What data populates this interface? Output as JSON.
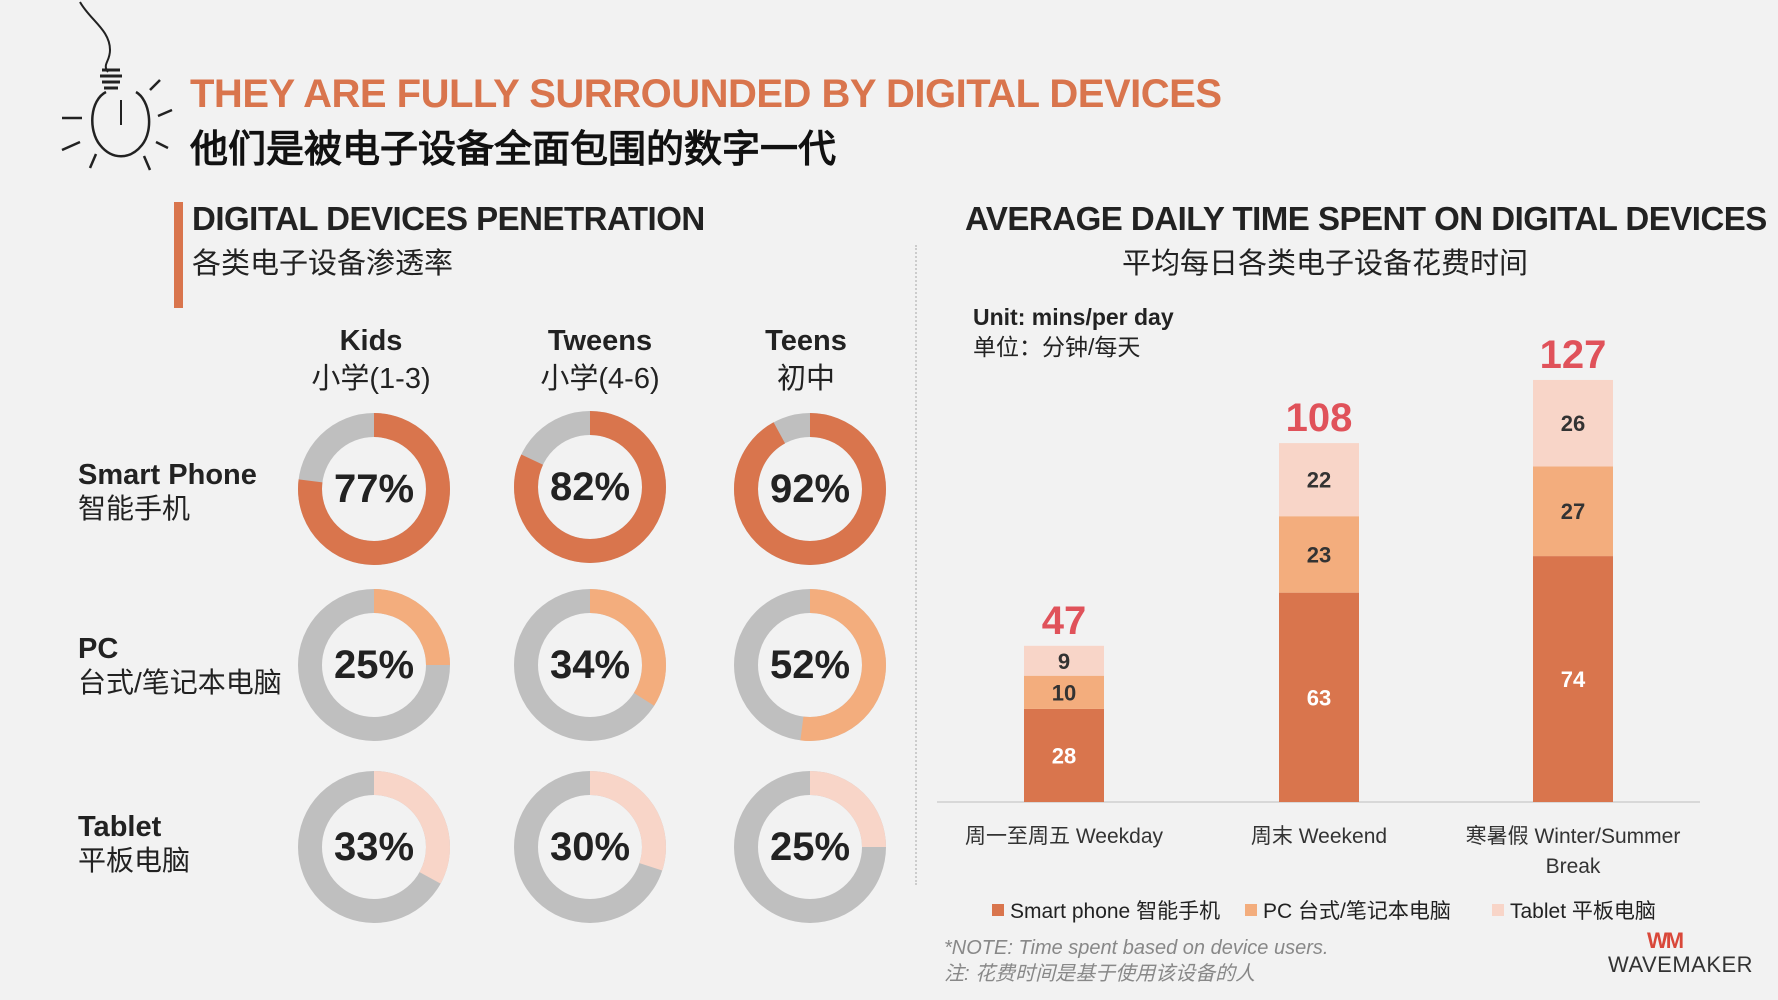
{
  "header": {
    "title_en": "THEY ARE FULLY SURROUNDED BY DIGITAL DEVICES",
    "title_cn": "他们是被电子设备全面包围的数字一代"
  },
  "penetration": {
    "title_en": "DIGITAL DEVICES PENETRATION",
    "title_cn": "各类电子设备渗透率",
    "groups": [
      {
        "en": "Kids",
        "cn": "小学(1-3)"
      },
      {
        "en": "Tweens",
        "cn": "小学(4-6)"
      },
      {
        "en": "Teens",
        "cn": "初中"
      }
    ],
    "devices": [
      {
        "en": "Smart Phone",
        "cn": "智能手机",
        "color": "#d9754d",
        "values": [
          77,
          82,
          92
        ],
        "labels": [
          "77%",
          "82%",
          "92%"
        ]
      },
      {
        "en": "PC",
        "cn": "台式/笔记本电脑",
        "color": "#f3ad7d",
        "values": [
          25,
          34,
          52
        ],
        "labels": [
          "25%",
          "34%",
          "52%"
        ]
      },
      {
        "en": "Tablet",
        "cn": "平板电脑",
        "color": "#f8d5c8",
        "values": [
          33,
          30,
          25
        ],
        "labels": [
          "33%",
          "30%",
          "25%"
        ]
      }
    ],
    "remainder_color": "#bfbfbf"
  },
  "time_chart": {
    "title_en": "AVERAGE DAILY TIME SPENT ON DIGITAL DEVICES",
    "title_cn": "平均每日各类电子设备花费时间",
    "unit_en": "Unit: mins/per day",
    "unit_cn": "单位：分钟/每天",
    "note_en": "*NOTE: Time spent based on device users.",
    "note_cn": "注: 花费时间是基于使用该设备的人",
    "total_color": "#e0525a"
  },
  "chart_data": {
    "type": "bar",
    "stacked": true,
    "title": "AVERAGE DAILY TIME SPENT ON DIGITAL DEVICES",
    "categories": [
      "周一至周五 Weekday",
      "周末 Weekend",
      "寒暑假 Winter/Summer Break"
    ],
    "totals": [
      47,
      108,
      127
    ],
    "series": [
      {
        "name": "Smart phone 智能手机",
        "color": "#d9754d",
        "values": [
          28,
          63,
          74
        ]
      },
      {
        "name": "PC 台式/笔记本电脑",
        "color": "#f3ad7d",
        "values": [
          10,
          23,
          27
        ]
      },
      {
        "name": "Tablet 平板电脑",
        "color": "#f8d5c8",
        "values": [
          9,
          22,
          26
        ]
      }
    ],
    "ylim": [
      0,
      130
    ],
    "xlabel": "",
    "ylabel": ""
  },
  "brand": {
    "logo_mark": "WM",
    "logo_text": "WAVEMAKER"
  }
}
